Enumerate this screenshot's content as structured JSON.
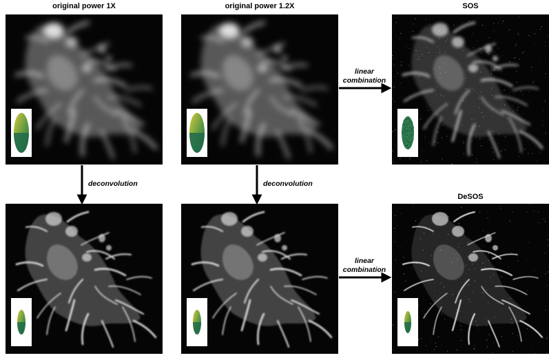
{
  "titles": {
    "p1": "original power 1X",
    "p2": "original power 1.2X",
    "p3": "SOS",
    "p6": "DeSOS"
  },
  "labels": {
    "deconvolution": "deconvolution",
    "linear": "linear",
    "combination": "combination"
  },
  "colors": {
    "panel_bg": "#050505",
    "psf_green": "#1f6b4a",
    "psf_yellow": "#d8c93a",
    "arrow": "#000000"
  },
  "icons": {
    "cell": "fluorescence-cell-image",
    "psf": "psf-ellipsoid-icon"
  }
}
